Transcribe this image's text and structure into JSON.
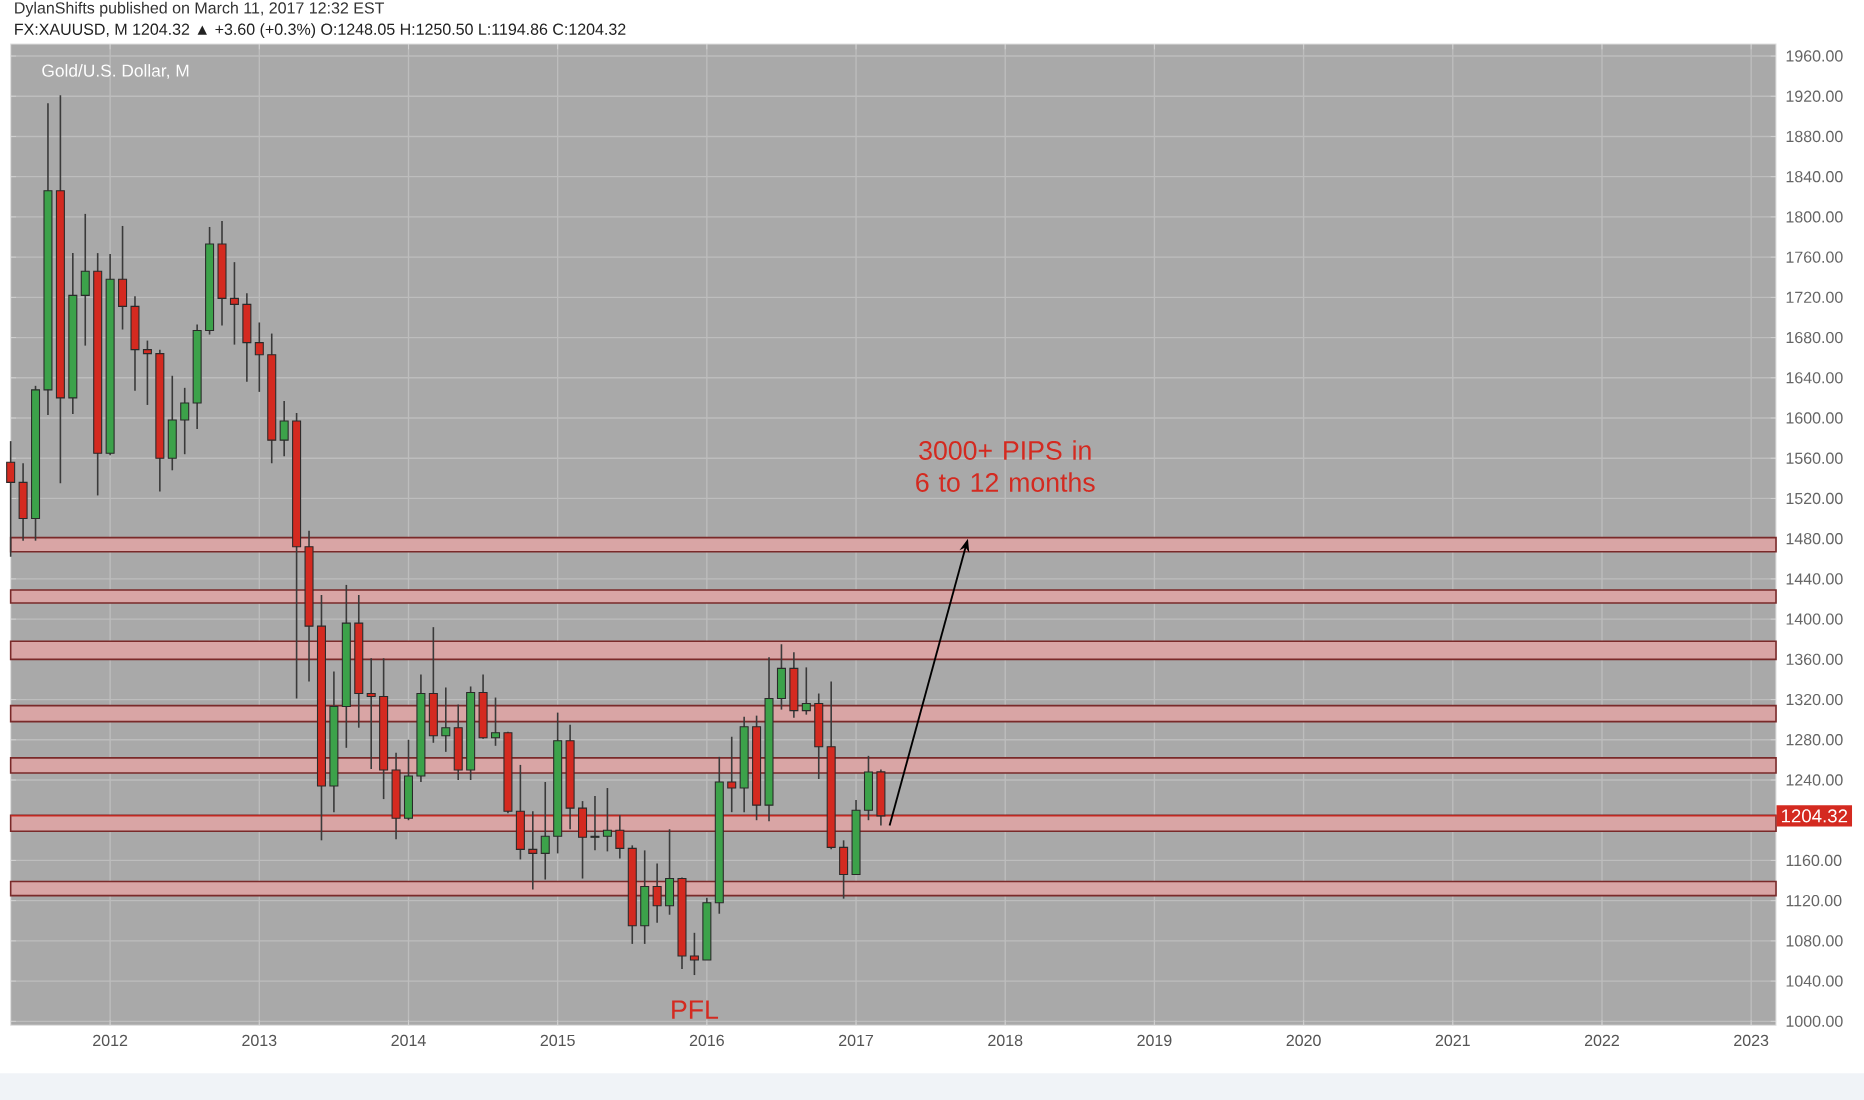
{
  "chart_data": {
    "type": "candlestick",
    "title": "Gold/U.S. Dollar, M",
    "subtitle": "FX:XAUUSD, M 1204.32 ▲ +3.60 (+0.3%) O:1248.05 H:1250.50 L:1194.86 C:1204.32",
    "annotations": [
      "DylanShifts published on March 11, 2017 12:32 EST",
      {
        "text": "3000+ PIPS in 6 to 12 months",
        "x": "2017-10",
        "y": 1480
      },
      {
        "text": "PFL",
        "x": "2015-12",
        "y": 1046
      }
    ],
    "x": [
      "2011-05",
      "2011-06",
      "2011-07",
      "2011-08",
      "2011-09",
      "2011-10",
      "2011-11",
      "2011-12",
      "2012-01",
      "2012-02",
      "2012-03",
      "2012-04",
      "2012-05",
      "2012-06",
      "2012-07",
      "2012-08",
      "2012-09",
      "2012-10",
      "2012-11",
      "2012-12",
      "2013-01",
      "2013-02",
      "2013-03",
      "2013-04",
      "2013-05",
      "2013-06",
      "2013-07",
      "2013-08",
      "2013-09",
      "2013-10",
      "2013-11",
      "2013-12",
      "2014-01",
      "2014-02",
      "2014-03",
      "2014-04",
      "2014-05",
      "2014-06",
      "2014-07",
      "2014-08",
      "2014-09",
      "2014-10",
      "2014-11",
      "2014-12",
      "2015-01",
      "2015-02",
      "2015-03",
      "2015-04",
      "2015-05",
      "2015-06",
      "2015-07",
      "2015-08",
      "2015-09",
      "2015-10",
      "2015-11",
      "2015-12",
      "2016-01",
      "2016-02",
      "2016-03",
      "2016-04",
      "2016-05",
      "2016-06",
      "2016-07",
      "2016-08",
      "2016-09",
      "2016-10",
      "2016-11",
      "2016-12",
      "2017-01",
      "2017-02",
      "2017-03"
    ],
    "ohlc": [
      [
        1556,
        1577,
        1462,
        1536
      ],
      [
        1536,
        1555,
        1478,
        1500
      ],
      [
        1500,
        1632,
        1478,
        1628
      ],
      [
        1628,
        1913,
        1603,
        1826
      ],
      [
        1826,
        1921,
        1535,
        1620
      ],
      [
        1620,
        1764,
        1604,
        1722
      ],
      [
        1722,
        1803,
        1672,
        1746
      ],
      [
        1746,
        1764,
        1523,
        1565
      ],
      [
        1565,
        1763,
        1563,
        1738
      ],
      [
        1738,
        1791,
        1688,
        1711
      ],
      [
        1711,
        1721,
        1627,
        1668
      ],
      [
        1668,
        1677,
        1613,
        1664
      ],
      [
        1664,
        1668,
        1527,
        1560
      ],
      [
        1560,
        1642,
        1548,
        1598
      ],
      [
        1598,
        1630,
        1564,
        1615
      ],
      [
        1615,
        1693,
        1589,
        1687
      ],
      [
        1687,
        1790,
        1683,
        1773
      ],
      [
        1773,
        1796,
        1692,
        1719
      ],
      [
        1719,
        1755,
        1673,
        1713
      ],
      [
        1713,
        1724,
        1636,
        1675
      ],
      [
        1675,
        1695,
        1626,
        1663
      ],
      [
        1663,
        1684,
        1555,
        1578
      ],
      [
        1578,
        1617,
        1562,
        1597
      ],
      [
        1597,
        1605,
        1321,
        1472
      ],
      [
        1472,
        1488,
        1338,
        1393
      ],
      [
        1393,
        1424,
        1180,
        1234
      ],
      [
        1234,
        1348,
        1208,
        1313
      ],
      [
        1313,
        1434,
        1272,
        1396
      ],
      [
        1396,
        1424,
        1292,
        1326
      ],
      [
        1326,
        1361,
        1251,
        1323
      ],
      [
        1323,
        1361,
        1221,
        1250
      ],
      [
        1250,
        1267,
        1181,
        1202
      ],
      [
        1202,
        1280,
        1200,
        1244
      ],
      [
        1244,
        1345,
        1238,
        1326
      ],
      [
        1326,
        1392,
        1277,
        1284
      ],
      [
        1284,
        1332,
        1268,
        1292
      ],
      [
        1292,
        1315,
        1240,
        1250
      ],
      [
        1250,
        1333,
        1240,
        1327
      ],
      [
        1327,
        1345,
        1281,
        1282
      ],
      [
        1282,
        1322,
        1274,
        1287
      ],
      [
        1287,
        1288,
        1207,
        1209
      ],
      [
        1209,
        1255,
        1161,
        1171
      ],
      [
        1171,
        1209,
        1131,
        1167
      ],
      [
        1167,
        1238,
        1141,
        1184
      ],
      [
        1184,
        1307,
        1167,
        1279
      ],
      [
        1279,
        1295,
        1191,
        1212
      ],
      [
        1212,
        1219,
        1142,
        1183
      ],
      [
        1183,
        1224,
        1170,
        1184
      ],
      [
        1184,
        1232,
        1169,
        1190
      ],
      [
        1190,
        1205,
        1162,
        1172
      ],
      [
        1172,
        1175,
        1077,
        1095
      ],
      [
        1095,
        1170,
        1077,
        1134
      ],
      [
        1134,
        1157,
        1098,
        1115
      ],
      [
        1115,
        1191,
        1106,
        1142
      ],
      [
        1142,
        1143,
        1052,
        1065
      ],
      [
        1065,
        1088,
        1046,
        1061
      ],
      [
        1061,
        1123,
        1061,
        1118
      ],
      [
        1118,
        1263,
        1107,
        1238
      ],
      [
        1238,
        1283,
        1208,
        1232
      ],
      [
        1232,
        1303,
        1208,
        1293
      ],
      [
        1293,
        1304,
        1200,
        1215
      ],
      [
        1215,
        1362,
        1199,
        1321
      ],
      [
        1321,
        1375,
        1310,
        1351
      ],
      [
        1351,
        1367,
        1302,
        1309
      ],
      [
        1309,
        1352,
        1305,
        1316
      ],
      [
        1316,
        1326,
        1241,
        1273
      ],
      [
        1273,
        1338,
        1171,
        1173
      ],
      [
        1173,
        1180,
        1122,
        1146
      ],
      [
        1146,
        1220,
        1146,
        1210
      ],
      [
        1210,
        1264,
        1200,
        1248
      ],
      [
        1248.05,
        1250.5,
        1194.86,
        1204.32
      ]
    ],
    "colors": [
      "#d42a20",
      "#d42a20",
      "#3ca24a",
      "#3ca24a",
      "#d42a20",
      "#3ca24a",
      "#3ca24a",
      "#d42a20",
      "#3ca24a",
      "#d42a20",
      "#d42a20",
      "#d42a20",
      "#d42a20",
      "#3ca24a",
      "#3ca24a",
      "#3ca24a",
      "#3ca24a",
      "#d42a20",
      "#d42a20",
      "#d42a20",
      "#d42a20",
      "#d42a20",
      "#3ca24a",
      "#d42a20",
      "#d42a20",
      "#d42a20",
      "#3ca24a",
      "#3ca24a",
      "#d42a20",
      "#d42a20",
      "#d42a20",
      "#d42a20",
      "#3ca24a",
      "#3ca24a",
      "#d42a20",
      "#3ca24a",
      "#d42a20",
      "#3ca24a",
      "#d42a20",
      "#3ca24a",
      "#d42a20",
      "#d42a20",
      "#d42a20",
      "#3ca24a",
      "#3ca24a",
      "#d42a20",
      "#d42a20",
      "#3ca24a",
      "#3ca24a",
      "#d42a20",
      "#d42a20",
      "#3ca24a",
      "#d42a20",
      "#3ca24a",
      "#d42a20",
      "#d42a20",
      "#3ca24a",
      "#3ca24a",
      "#d42a20",
      "#3ca24a",
      "#d42a20",
      "#3ca24a",
      "#3ca24a",
      "#d42a20",
      "#3ca24a",
      "#d42a20",
      "#d42a20",
      "#d42a20",
      "#3ca24a",
      "#3ca24a",
      "#d42a20"
    ],
    "xlim": [
      "2011-05",
      "2023-03"
    ],
    "xticks": [
      "2012",
      "2013",
      "2014",
      "2015",
      "2016",
      "2017",
      "2018",
      "2019",
      "2020",
      "2021",
      "2022",
      "2023"
    ],
    "ylim": [
      996,
      1972
    ],
    "yticks": [
      {
        "value": 1000,
        "label": "1000.00"
      },
      {
        "value": 1040,
        "label": "1040.00"
      },
      {
        "value": 1080,
        "label": "1080.00"
      },
      {
        "value": 1120,
        "label": "1120.00"
      },
      {
        "value": 1160,
        "label": "1160.00"
      },
      {
        "value": 1240,
        "label": "1240.00"
      },
      {
        "value": 1280,
        "label": "1280.00"
      },
      {
        "value": 1320,
        "label": "1320.00"
      },
      {
        "value": 1360,
        "label": "1360.00"
      },
      {
        "value": 1400,
        "label": "1400.00"
      },
      {
        "value": 1440,
        "label": "1440.00"
      },
      {
        "value": 1480,
        "label": "1480.00"
      },
      {
        "value": 1520,
        "label": "1520.00"
      },
      {
        "value": 1560,
        "label": "1560.00"
      },
      {
        "value": 1600,
        "label": "1600.00"
      },
      {
        "value": 1640,
        "label": "1640.00"
      },
      {
        "value": 1680,
        "label": "1680.00"
      },
      {
        "value": 1720,
        "label": "1720.00"
      },
      {
        "value": 1760,
        "label": "1760.00"
      },
      {
        "value": 1800,
        "label": "1800.00"
      },
      {
        "value": 1840,
        "label": "1840.00"
      },
      {
        "value": 1880,
        "label": "1880.00"
      },
      {
        "value": 1920,
        "label": "1920.00"
      },
      {
        "value": 1960,
        "label": "1960.00"
      }
    ],
    "grid": true,
    "ref_lines": [
      {
        "axis": "y",
        "value": 1204.32,
        "label": "1204.32",
        "color": "#d42a20"
      }
    ],
    "bands": [
      {
        "axis": "y",
        "from": 1467,
        "to": 1481,
        "color": "#d9a5a5"
      },
      {
        "axis": "y",
        "from": 1416,
        "to": 1429,
        "color": "#d9a5a5"
      },
      {
        "axis": "y",
        "from": 1360,
        "to": 1378,
        "color": "#d9a5a5"
      },
      {
        "axis": "y",
        "from": 1298,
        "to": 1314,
        "color": "#d9a5a5"
      },
      {
        "axis": "y",
        "from": 1247,
        "to": 1262,
        "color": "#d9a5a5"
      },
      {
        "axis": "y",
        "from": 1189,
        "to": 1205,
        "color": "#d9a5a5"
      },
      {
        "axis": "y",
        "from": 1125,
        "to": 1139,
        "color": "#d9a5a5"
      }
    ]
  }
}
